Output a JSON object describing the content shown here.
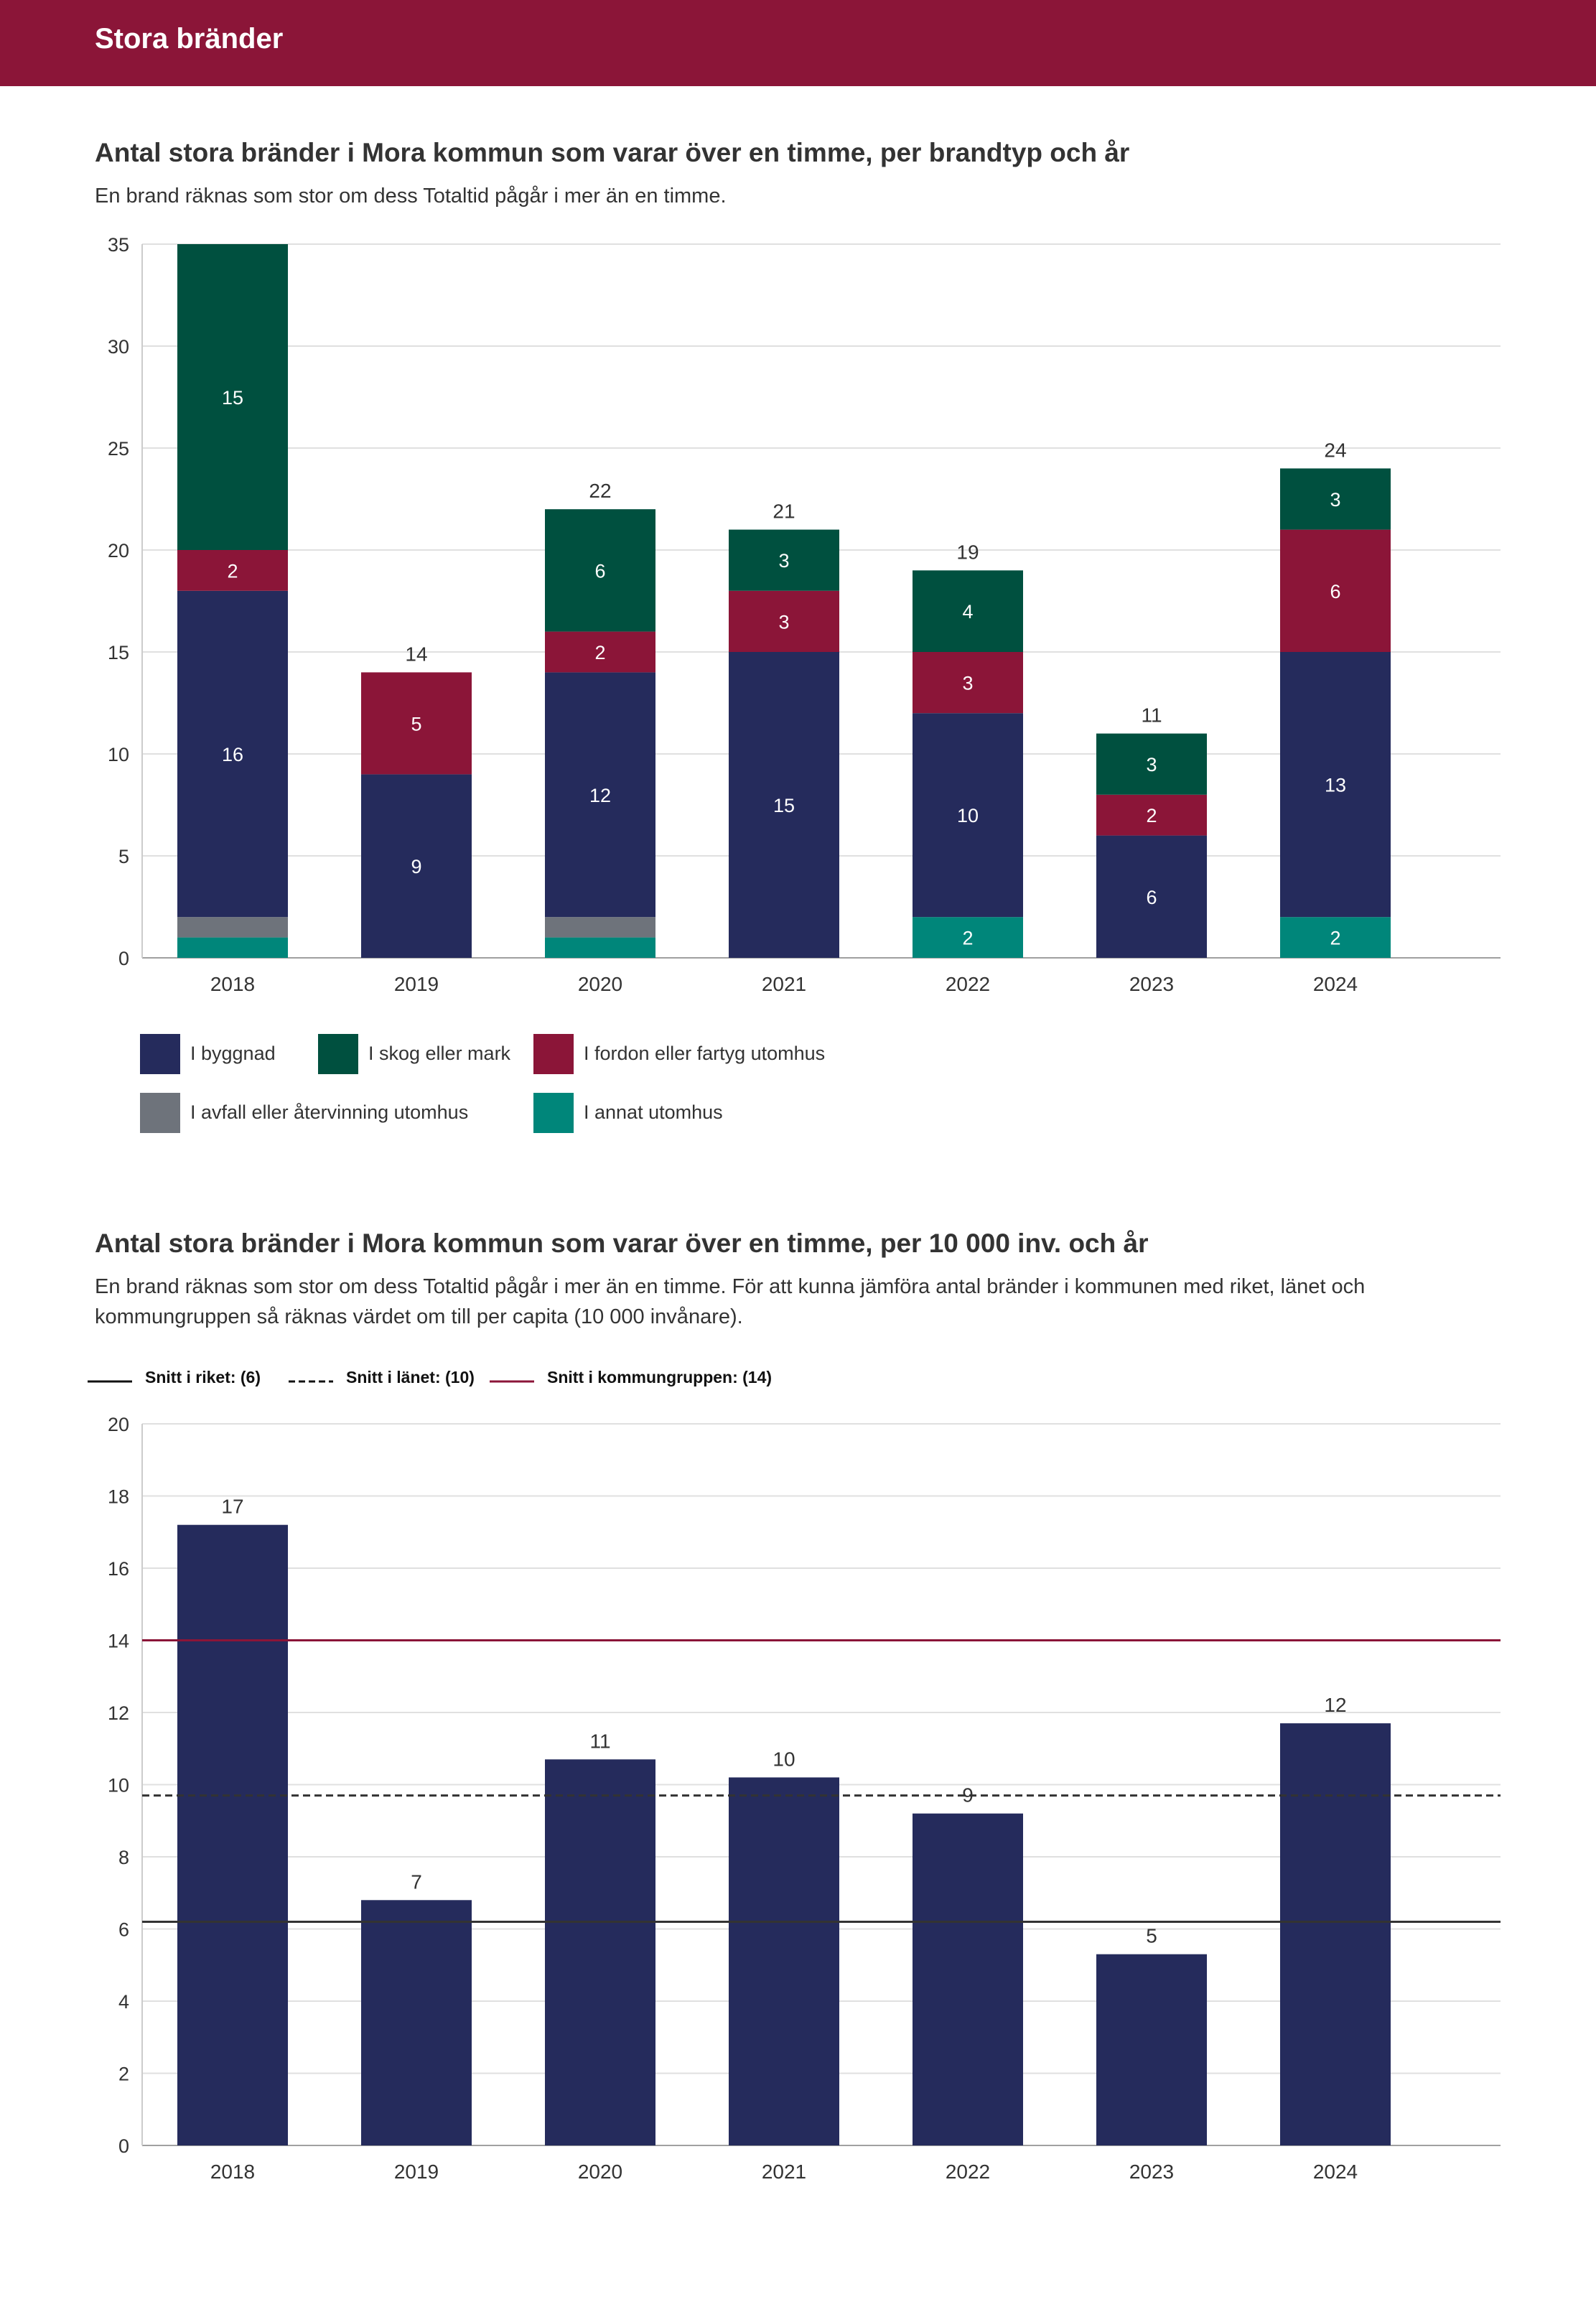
{
  "header": {
    "title": "Stora bränder"
  },
  "chart1": {
    "title": "Antal stora bränder i Mora kommun som varar över en timme, per brandtyp och år",
    "subtitle": "En brand räknas som stor om dess Totaltid pågår i mer än en timme."
  },
  "chart2": {
    "title": "Antal stora bränder i Mora kommun som varar över en timme, per 10 000 inv. och år",
    "subtitle_line1": "En brand räknas som stor om dess Totaltid pågår i mer än en timme. För att kunna jämföra antal bränder i kommunen med riket, länet och",
    "subtitle_line2": "kommungruppen så räknas värdet om till per capita (10 000 invånare)."
  },
  "legend": [
    {
      "label": "I byggnad",
      "color": "#252b5c"
    },
    {
      "label": "I skog eller mark",
      "color": "#00503f"
    },
    {
      "label": "I fordon eller fartyg utomhus",
      "color": "#8b1538"
    },
    {
      "label": "I avfall eller återvinning utomhus",
      "color": "#6e737b"
    },
    {
      "label": "I annat utomhus",
      "color": "#00867a"
    }
  ],
  "ref_legend": [
    {
      "label": "Snitt i riket: (6)",
      "style": "solid",
      "color": "#111111"
    },
    {
      "label": "Snitt i länet: (10)",
      "style": "dashed",
      "color": "#111111"
    },
    {
      "label": "Snitt i kommungruppen: (14)",
      "style": "solid",
      "color": "#8b1538"
    }
  ],
  "chart_data": [
    {
      "type": "bar",
      "stacked": true,
      "title": "Antal stora bränder i Mora kommun som varar över en timme, per brandtyp och år",
      "categories": [
        "2018",
        "2019",
        "2020",
        "2021",
        "2022",
        "2023",
        "2024"
      ],
      "series": [
        {
          "name": "I annat utomhus",
          "color": "#00867a",
          "values": [
            1,
            0,
            1,
            0,
            2,
            0,
            2
          ],
          "labels": [
            "",
            "",
            "",
            "",
            "2",
            "",
            "2"
          ]
        },
        {
          "name": "I avfall eller återvinning utomhus",
          "color": "#6e737b",
          "values": [
            1,
            0,
            1,
            0,
            0,
            0,
            0
          ],
          "labels": [
            "",
            "",
            "",
            "",
            "",
            "",
            ""
          ]
        },
        {
          "name": "I byggnad",
          "color": "#252b5c",
          "values": [
            16,
            9,
            12,
            15,
            10,
            6,
            13
          ],
          "labels": [
            "16",
            "9",
            "12",
            "15",
            "10",
            "6",
            "13"
          ]
        },
        {
          "name": "I fordon eller fartyg utomhus",
          "color": "#8b1538",
          "values": [
            2,
            5,
            2,
            3,
            3,
            2,
            6
          ],
          "labels": [
            "2",
            "5",
            "2",
            "3",
            "3",
            "2",
            "6"
          ]
        },
        {
          "name": "I skog eller mark",
          "color": "#00503f",
          "values": [
            15,
            0,
            6,
            3,
            4,
            3,
            3
          ],
          "labels": [
            "15",
            "",
            "6",
            "3",
            "4",
            "3",
            "3"
          ]
        }
      ],
      "totals": [
        "",
        "14",
        "22",
        "21",
        "19",
        "11",
        "24"
      ],
      "yticks": [
        "0",
        "5",
        "10",
        "15",
        "20",
        "25",
        "30",
        "35"
      ],
      "ylim": [
        0,
        35
      ]
    },
    {
      "type": "bar",
      "title": "Antal stora bränder i Mora kommun som varar över en timme, per 10 000 inv. och år",
      "categories": [
        "2018",
        "2019",
        "2020",
        "2021",
        "2022",
        "2023",
        "2024"
      ],
      "values": [
        17.2,
        6.8,
        10.7,
        10.2,
        9.2,
        5.3,
        11.7
      ],
      "value_labels": [
        "17",
        "7",
        "11",
        "10",
        "9",
        "5",
        "12"
      ],
      "color": "#252b5c",
      "yticks": [
        "0",
        "2",
        "4",
        "6",
        "8",
        "10",
        "12",
        "14",
        "16",
        "18",
        "20"
      ],
      "ylim": [
        0,
        20
      ],
      "reference_lines": [
        {
          "name": "Snitt i riket",
          "value": 6.2,
          "style": "solid",
          "color": "#333333"
        },
        {
          "name": "Snitt i länet",
          "value": 9.7,
          "style": "dashed",
          "color": "#333333"
        },
        {
          "name": "Snitt i kommungruppen",
          "value": 14.0,
          "style": "solid",
          "color": "#8b1538"
        }
      ]
    }
  ]
}
